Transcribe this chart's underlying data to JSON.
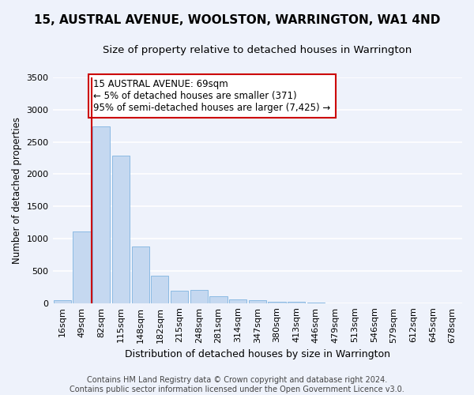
{
  "title": "15, AUSTRAL AVENUE, WOOLSTON, WARRINGTON, WA1 4ND",
  "subtitle": "Size of property relative to detached houses in Warrington",
  "xlabel": "Distribution of detached houses by size in Warrington",
  "ylabel": "Number of detached properties",
  "bar_labels": [
    "16sqm",
    "49sqm",
    "82sqm",
    "115sqm",
    "148sqm",
    "182sqm",
    "215sqm",
    "248sqm",
    "281sqm",
    "314sqm",
    "347sqm",
    "380sqm",
    "413sqm",
    "446sqm",
    "479sqm",
    "513sqm",
    "546sqm",
    "579sqm",
    "612sqm",
    "645sqm",
    "678sqm"
  ],
  "bar_values": [
    45,
    1110,
    2740,
    2290,
    880,
    430,
    195,
    200,
    110,
    60,
    45,
    25,
    15,
    5,
    2,
    1,
    0,
    0,
    0,
    0,
    0
  ],
  "bar_color": "#c5d8f0",
  "bar_edge_color": "#7fb3e0",
  "highlight_color": "#cc0000",
  "red_line_x": 2,
  "ylim": [
    0,
    3500
  ],
  "yticks": [
    0,
    500,
    1000,
    1500,
    2000,
    2500,
    3000,
    3500
  ],
  "annotation_text": "15 AUSTRAL AVENUE: 69sqm\n← 5% of detached houses are smaller (371)\n95% of semi-detached houses are larger (7,425) →",
  "annotation_box_facecolor": "#ffffff",
  "annotation_box_edgecolor": "#cc0000",
  "footer_line1": "Contains HM Land Registry data © Crown copyright and database right 2024.",
  "footer_line2": "Contains public sector information licensed under the Open Government Licence v3.0.",
  "background_color": "#eef2fb",
  "grid_color": "#ffffff",
  "title_fontsize": 11,
  "subtitle_fontsize": 9.5,
  "xlabel_fontsize": 9,
  "ylabel_fontsize": 8.5,
  "tick_fontsize": 8,
  "annotation_fontsize": 8.5,
  "footer_fontsize": 7
}
